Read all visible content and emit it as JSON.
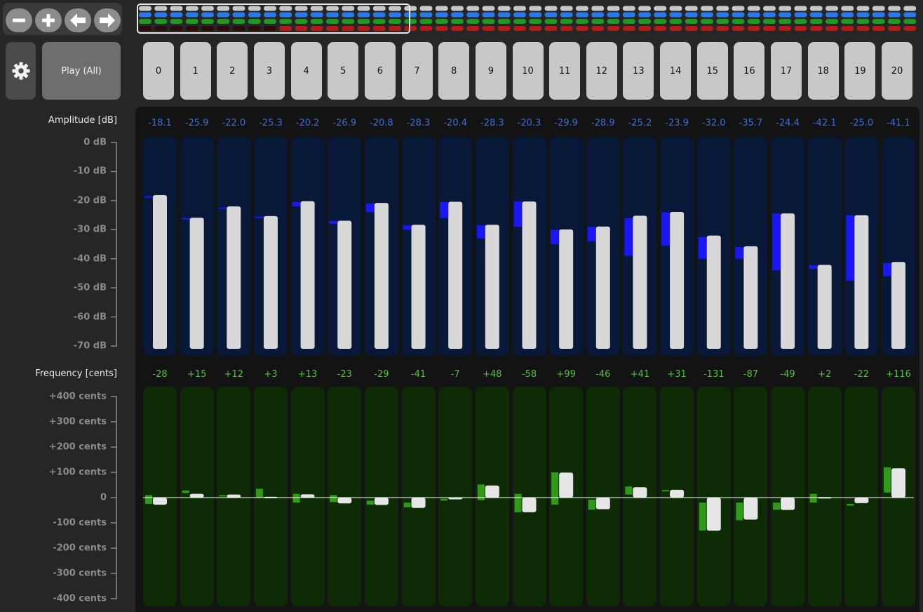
{
  "toolbar": {
    "buttons": [
      {
        "name": "zoom-out-button",
        "icon": "minus-icon"
      },
      {
        "name": "zoom-in-button",
        "icon": "plus-icon"
      },
      {
        "name": "previous-button",
        "icon": "arrow-left-icon"
      },
      {
        "name": "next-button",
        "icon": "arrow-right-icon"
      }
    ]
  },
  "settings": {
    "icon": "gear-icon"
  },
  "play_label": "Play (All)",
  "channels": [
    "0",
    "1",
    "2",
    "3",
    "4",
    "5",
    "6",
    "7",
    "8",
    "9",
    "10",
    "11",
    "12",
    "13",
    "14",
    "15",
    "16",
    "17",
    "18",
    "19",
    "20"
  ],
  "amplitude": {
    "title": "Amplitude [dB]",
    "axis_labels": [
      "0 dB",
      "-10 dB",
      "-20 dB",
      "-30 dB",
      "-40 dB",
      "-50 dB",
      "-60 dB",
      "-70 dB"
    ],
    "range": [
      -70,
      0
    ],
    "value_labels": [
      "-18.1",
      "-25.9",
      "-22.0",
      "-25.3",
      "-20.2",
      "-26.9",
      "-20.8",
      "-28.3",
      "-20.4",
      "-28.3",
      "-20.3",
      "-29.9",
      "-28.9",
      "-25.2",
      "-23.9",
      "-32.0",
      "-35.7",
      "-24.4",
      "-42.1",
      "-25.0",
      "-41.1"
    ],
    "values": [
      -18.1,
      -25.9,
      -22.0,
      -25.3,
      -20.2,
      -26.9,
      -20.8,
      -28.3,
      -20.4,
      -28.3,
      -20.3,
      -29.9,
      -28.9,
      -25.2,
      -23.9,
      -32.0,
      -35.7,
      -24.4,
      -42.1,
      -25.0,
      -41.1
    ],
    "target_ranges": [
      [
        -18.5,
        -19
      ],
      [
        -26,
        -26.5
      ],
      [
        -22.3,
        -22.5
      ],
      [
        -25.5,
        -26
      ],
      [
        -20.5,
        -22
      ],
      [
        -27,
        -28
      ],
      [
        -21,
        -24
      ],
      [
        -28.5,
        -30
      ],
      [
        -20.5,
        -26
      ],
      [
        -28.5,
        -33
      ],
      [
        -20.3,
        -29
      ],
      [
        -30,
        -35
      ],
      [
        -29,
        -34
      ],
      [
        -26,
        -39
      ],
      [
        -24,
        -35.5
      ],
      [
        -32.5,
        -40
      ],
      [
        -36,
        -40
      ],
      [
        -24.5,
        -44
      ],
      [
        -42.2,
        -43.5
      ],
      [
        -25,
        -47.5
      ],
      [
        -41.5,
        -46
      ]
    ],
    "colors": {
      "track": "#071838",
      "value_text": "#3b6fd8",
      "target_bar": "#1a16f5",
      "bar": "#d8d8d8"
    }
  },
  "frequency": {
    "title": "Frequency [cents]",
    "axis_labels": [
      "+400 cents",
      "+300 cents",
      "+200 cents",
      "+100 cents",
      "0",
      "-100 cents",
      "-200 cents",
      "-300 cents",
      "-400 cents"
    ],
    "range": [
      -400,
      400
    ],
    "value_labels": [
      "-28",
      "+15",
      "+12",
      "+3",
      "+13",
      "-23",
      "-29",
      "-41",
      "-7",
      "+48",
      "-58",
      "+99",
      "-46",
      "+41",
      "+31",
      "-131",
      "-87",
      "-49",
      "+2",
      "-22",
      "+116"
    ],
    "values": [
      -28,
      15,
      12,
      3,
      13,
      -23,
      -29,
      -41,
      -7,
      48,
      -58,
      99,
      -46,
      41,
      31,
      -131,
      -87,
      -49,
      2,
      -22,
      116
    ],
    "target_ranges": [
      [
        10,
        -25
      ],
      [
        28,
        18
      ],
      [
        10,
        5
      ],
      [
        35,
        0
      ],
      [
        15,
        -20
      ],
      [
        10,
        -18
      ],
      [
        -12,
        -28
      ],
      [
        -20,
        -38
      ],
      [
        -5,
        -12
      ],
      [
        52,
        -10
      ],
      [
        15,
        -58
      ],
      [
        100,
        -28
      ],
      [
        -8,
        -48
      ],
      [
        44,
        12
      ],
      [
        30,
        25
      ],
      [
        -20,
        -130
      ],
      [
        -20,
        -90
      ],
      [
        -20,
        -48
      ],
      [
        15,
        -20
      ],
      [
        -25,
        -32
      ],
      [
        120,
        20
      ]
    ],
    "colors": {
      "track": "#0d2c06",
      "value_text": "#52c03a",
      "target_bar": "#2f9a17",
      "bar": "#e6e6e6",
      "zero_line": "#ffffff"
    }
  },
  "overview": {
    "rows": [
      {
        "name": "amplitude-row",
        "color": "#2a78ee"
      },
      {
        "name": "pitch-row",
        "color": "#1f9a1f"
      },
      {
        "name": "error-row",
        "color": "#b51919"
      }
    ],
    "top_row_color": "#c8c8c8",
    "dim_error_color": "#2a0c0c"
  }
}
